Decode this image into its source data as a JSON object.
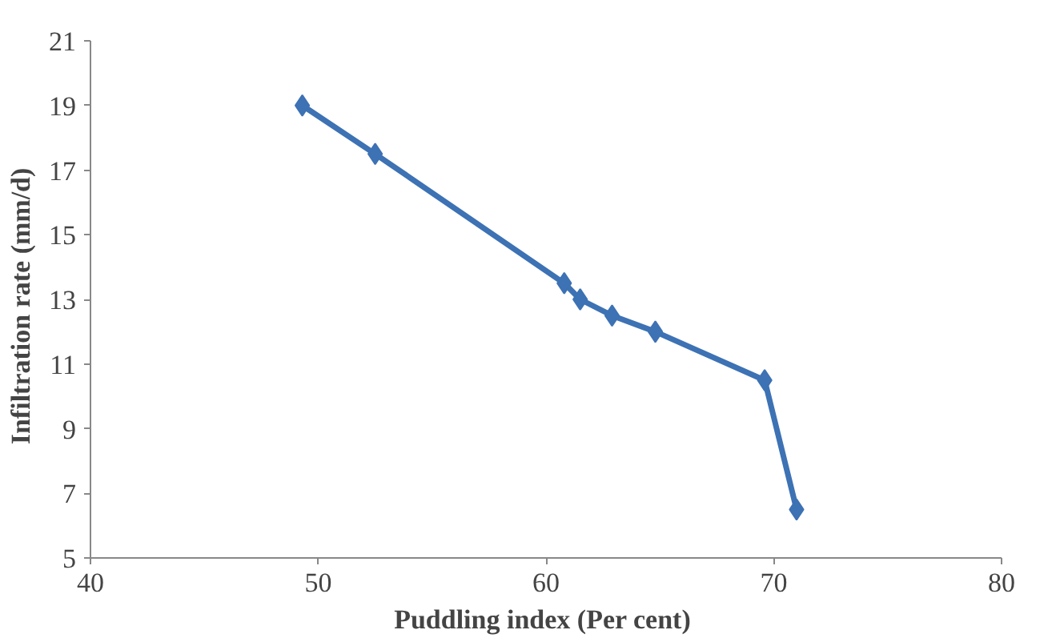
{
  "chart_data": {
    "type": "line",
    "xlabel": "Puddling  index (Per cent)",
    "ylabel": "Infiltration  rate  (mm/d)",
    "x": [
      49.3,
      52.5,
      60.8,
      61.5,
      62.9,
      64.8,
      69.6,
      71.0
    ],
    "series": [
      {
        "color": "#3d72b4",
        "values": [
          19,
          17.5,
          13.5,
          13,
          12.5,
          12,
          10.5,
          6.5
        ]
      }
    ],
    "xlim": [
      40,
      80
    ],
    "xticks": [
      40,
      50,
      60,
      70,
      80
    ],
    "ylim": [
      5,
      21
    ],
    "yticks": [
      5,
      7,
      9,
      11,
      13,
      15,
      17,
      19,
      21
    ],
    "grid": false,
    "marker": "diamond",
    "line_style": "solid"
  }
}
